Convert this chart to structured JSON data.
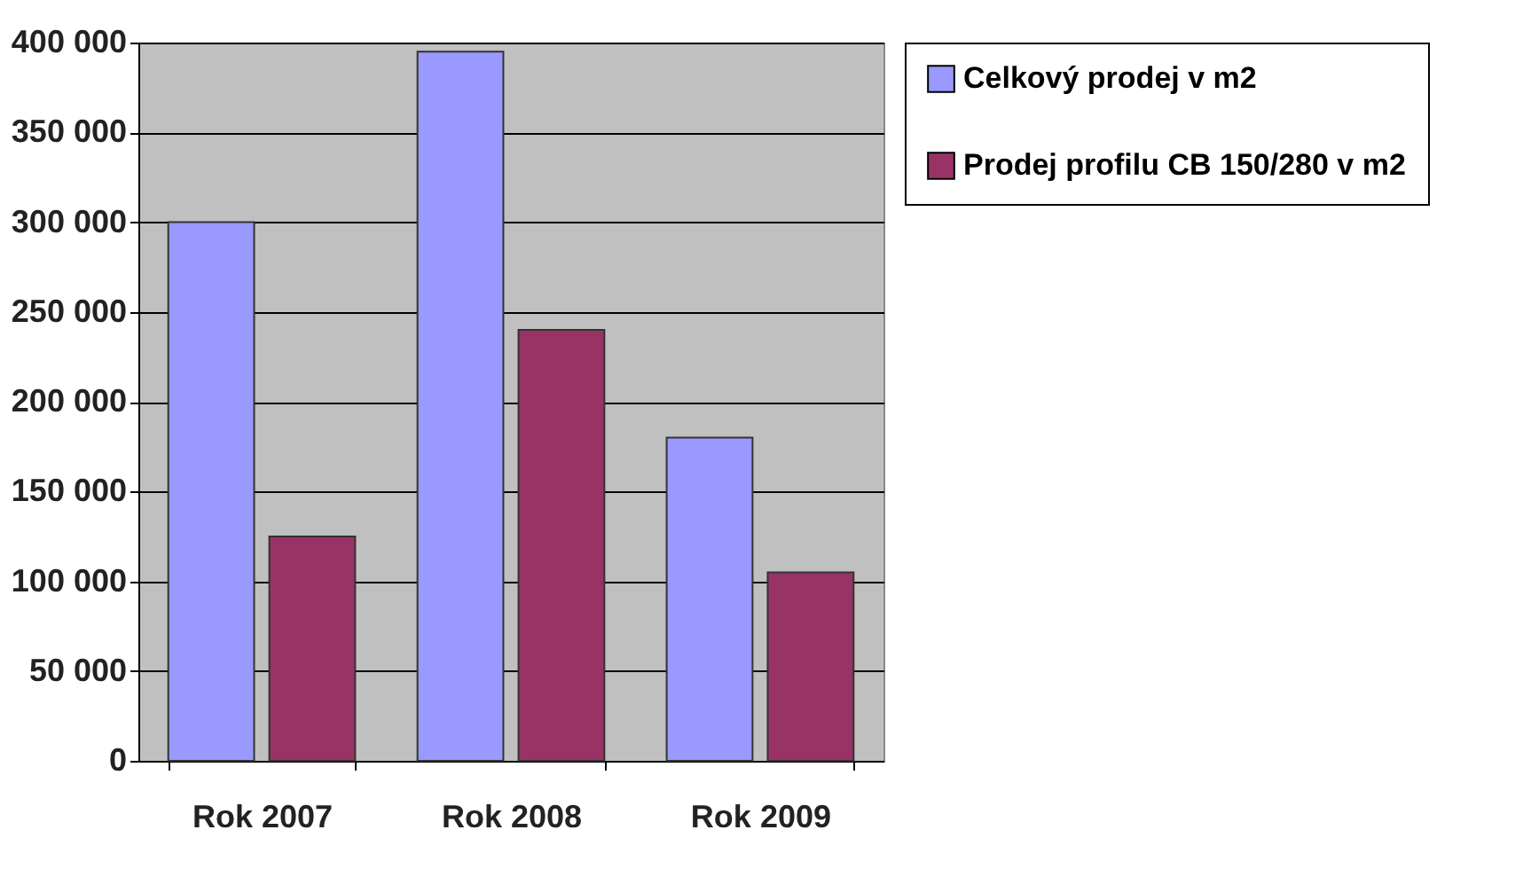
{
  "chart_data": {
    "type": "bar",
    "categories": [
      "Rok 2007",
      "Rok 2008",
      "Rok 2009"
    ],
    "series": [
      {
        "name": "Celkový prodej v m2",
        "color": "#9999ff",
        "values": [
          300000,
          395000,
          180000
        ]
      },
      {
        "name": "Prodej profilu CB 150/280 v m2",
        "color": "#993366",
        "values": [
          125000,
          240000,
          105000
        ]
      }
    ],
    "ylim": [
      0,
      400000
    ],
    "yticks": [
      {
        "value": 0,
        "label": "0"
      },
      {
        "value": 50000,
        "label": "50 000"
      },
      {
        "value": 100000,
        "label": "100 000"
      },
      {
        "value": 150000,
        "label": "150 000"
      },
      {
        "value": 200000,
        "label": "200 000"
      },
      {
        "value": 250000,
        "label": "250 000"
      },
      {
        "value": 300000,
        "label": "300 000"
      },
      {
        "value": 350000,
        "label": "350 000"
      },
      {
        "value": 400000,
        "label": "400 000"
      }
    ],
    "grid": "y",
    "legend": "right"
  }
}
